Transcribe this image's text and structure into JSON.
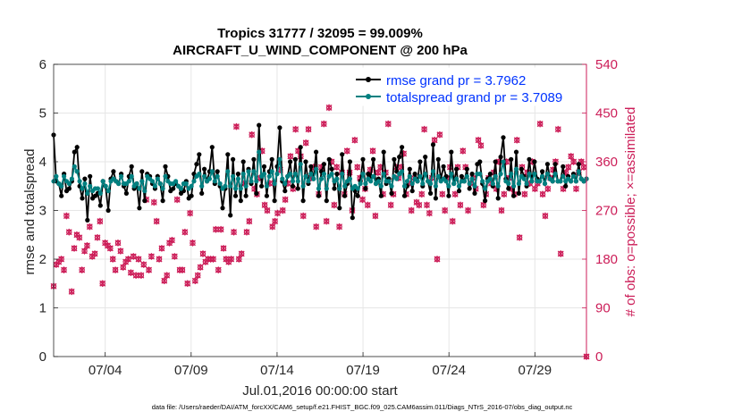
{
  "chart_data": {
    "type": "line",
    "title_line1": "Tropics 31777 / 32095 = 99.009%",
    "title_line2": "AIRCRAFT_U_WIND_COMPONENT @ 200 hPa",
    "xlabel": "Jul.01,2016 00:00:00 start",
    "ylabel_left": "rmse and totalspread",
    "ylabel_right": "# of obs: o=possible; ×=assimilated",
    "x_ticks": [
      "07/04",
      "07/09",
      "07/14",
      "07/19",
      "07/24",
      "07/29"
    ],
    "x_tick_days": [
      4,
      9,
      14,
      19,
      24,
      29
    ],
    "xlim": [
      1,
      32
    ],
    "ylim_left": [
      0,
      6
    ],
    "yticks_left": [
      "0",
      "1",
      "2",
      "3",
      "4",
      "5",
      "6"
    ],
    "ylim_right": [
      0,
      540
    ],
    "yticks_right": [
      "0",
      "90",
      "180",
      "270",
      "360",
      "450",
      "540"
    ],
    "footnote": "data file: /Users/raeder/DAI/ATM_forcXX/CAM6_setup/f.e21.FHIST_BGC.f09_025.CAM6assim.011/Diags_NTrS_2016-07/obs_diag_output.nc",
    "colors": {
      "rmse": "#000000",
      "spread": "#008080",
      "obs": "#cc1d58",
      "right_axis": "#cc1d58",
      "legend_text": "#0033ff"
    },
    "series": [
      {
        "name": "rmse grand pr = 3.7962",
        "values": [
          4.55,
          3.6,
          3.55,
          3.3,
          3.75,
          3.4,
          3.45,
          3.6,
          4.2,
          4.3,
          3.5,
          3.25,
          3.65,
          2.8,
          3.7,
          3.25,
          3.3,
          3.35,
          3.1,
          3.6,
          3.5,
          3.0,
          3.65,
          3.8,
          3.6,
          3.55,
          3.75,
          3.5,
          3.35,
          3.7,
          3.9,
          3.45,
          3.55,
          3.05,
          3.8,
          3.2,
          3.75,
          3.7,
          3.55,
          3.45,
          3.7,
          3.55,
          3.2,
          3.9,
          3.7,
          3.4,
          3.45,
          3.55,
          3.5,
          3.35,
          3.4,
          3.6,
          3.25,
          3.3,
          3.75,
          3.95,
          4.15,
          3.35,
          3.85,
          3.6,
          3.8,
          4.3,
          3.55,
          3.8,
          3.5,
          3.05,
          3.45,
          4.15,
          2.9,
          4.05,
          3.3,
          3.75,
          3.2,
          4.0,
          3.3,
          3.85,
          3.55,
          4.05,
          3.35,
          4.75,
          3.5,
          3.9,
          3.3,
          3.8,
          4.05,
          3.2,
          3.9,
          4.7,
          3.6,
          3.4,
          3.7,
          4.0,
          3.5,
          4.05,
          3.45,
          4.3,
          3.2,
          4.0,
          3.55,
          3.9,
          3.65,
          4.2,
          3.3,
          3.8,
          3.95,
          3.2,
          4.05,
          3.85,
          3.45,
          3.75,
          3.05,
          4.15,
          3.3,
          3.55,
          4.0,
          2.85,
          3.4,
          3.3,
          3.6,
          4.05,
          3.45,
          3.75,
          3.7,
          4.05,
          3.55,
          3.65,
          3.3,
          4.2,
          3.55,
          3.65,
          3.35,
          4.05,
          3.8,
          4.1,
          4.3,
          3.3,
          3.5,
          3.85,
          3.4,
          3.75,
          3.6,
          4.0,
          3.5,
          4.1,
          3.6,
          3.35,
          4.35,
          3.25,
          4.05,
          3.65,
          3.9,
          3.7,
          3.3,
          4.2,
          3.55,
          3.85,
          3.4,
          3.7,
          3.6,
          3.85,
          3.45,
          3.75,
          3.35,
          3.95,
          4.0,
          3.55,
          3.2,
          3.65,
          3.75,
          3.5,
          4.0,
          3.25,
          4.1,
          4.5,
          3.65,
          3.45,
          4.05,
          3.3,
          4.2,
          3.35,
          3.85,
          3.7,
          3.5,
          4.05,
          3.6,
          4.0,
          3.65,
          3.6,
          3.8,
          3.55,
          3.95,
          3.65,
          3.6,
          3.95,
          3.6,
          3.6,
          3.9,
          3.5,
          3.7,
          3.6,
          3.75,
          3.6,
          3.95,
          3.65,
          3.6,
          3.65
        ]
      },
      {
        "name": "totalspread grand pr = 3.7089",
        "values": [
          3.6,
          3.7,
          3.55,
          3.5,
          3.7,
          3.6,
          3.55,
          3.65,
          3.9,
          3.8,
          3.6,
          3.45,
          3.55,
          3.35,
          3.5,
          3.4,
          3.45,
          3.45,
          3.35,
          3.6,
          3.5,
          3.4,
          3.6,
          3.65,
          3.6,
          3.55,
          3.7,
          3.55,
          3.55,
          3.6,
          3.7,
          3.5,
          3.55,
          3.45,
          3.6,
          3.4,
          3.7,
          3.65,
          3.6,
          3.5,
          3.65,
          3.55,
          3.45,
          3.7,
          3.6,
          3.55,
          3.55,
          3.6,
          3.5,
          3.45,
          3.55,
          3.55,
          3.45,
          3.5,
          3.6,
          3.7,
          3.75,
          3.5,
          3.7,
          3.6,
          3.65,
          3.8,
          3.6,
          3.7,
          3.55,
          3.45,
          3.5,
          3.8,
          3.5,
          3.7,
          3.45,
          3.65,
          3.45,
          3.75,
          3.5,
          3.8,
          3.6,
          3.8,
          3.6,
          4.2,
          3.7,
          3.75,
          3.5,
          3.7,
          3.8,
          3.55,
          3.75,
          4.05,
          3.65,
          3.55,
          3.7,
          3.75,
          3.6,
          3.75,
          3.6,
          3.95,
          3.5,
          3.7,
          3.6,
          3.75,
          3.65,
          3.85,
          3.45,
          3.65,
          3.75,
          3.45,
          3.7,
          3.75,
          3.6,
          3.65,
          3.45,
          3.75,
          3.5,
          3.6,
          3.65,
          3.45,
          3.5,
          3.45,
          3.55,
          3.75,
          3.55,
          3.65,
          3.6,
          3.7,
          3.55,
          3.6,
          3.5,
          3.75,
          3.6,
          3.6,
          3.5,
          3.7,
          3.65,
          3.75,
          3.8,
          3.5,
          3.6,
          3.7,
          3.55,
          3.65,
          3.6,
          3.7,
          3.55,
          3.75,
          3.6,
          3.55,
          3.8,
          3.5,
          3.7,
          3.6,
          3.65,
          3.6,
          3.5,
          3.75,
          3.55,
          3.65,
          3.5,
          3.6,
          3.6,
          3.7,
          3.55,
          3.65,
          3.5,
          3.75,
          3.75,
          3.6,
          3.45,
          3.6,
          3.65,
          3.55,
          3.7,
          3.5,
          3.75,
          4.0,
          3.6,
          3.55,
          3.75,
          3.5,
          3.85,
          3.55,
          3.7,
          3.65,
          3.55,
          3.75,
          3.6,
          3.75,
          3.6,
          3.6,
          3.7,
          3.55,
          3.75,
          3.65,
          3.6,
          3.75,
          3.6,
          3.6,
          3.7,
          3.6,
          3.65,
          3.6,
          3.7,
          3.6,
          3.8,
          3.65,
          3.6,
          3.65
        ]
      }
    ],
    "obs_possible": [
      130,
      170,
      175,
      180,
      160,
      260,
      230,
      120,
      200,
      225,
      220,
      160,
      195,
      205,
      240,
      185,
      190,
      220,
      250,
      135,
      210,
      205,
      200,
      180,
      160,
      210,
      195,
      165,
      175,
      180,
      155,
      185,
      150,
      180,
      150,
      170,
      290,
      160,
      185,
      285,
      250,
      180,
      200,
      140,
      150,
      210,
      215,
      185,
      290,
      160,
      160,
      230,
      135,
      265,
      210,
      140,
      150,
      165,
      190,
      175,
      180,
      180,
      180,
      235,
      160,
      235,
      200,
      180,
      175,
      180,
      230,
      425,
      180,
      190,
      320,
      230,
      250,
      410,
      310,
      300,
      330,
      380,
      280,
      270,
      320,
      240,
      250,
      265,
      345,
      270,
      290,
      320,
      370,
      310,
      420,
      380,
      370,
      260,
      395,
      420,
      330,
      350,
      240,
      300,
      350,
      430,
      250,
      460,
      360,
      280,
      350,
      240,
      340,
      300,
      380,
      340,
      270,
      400,
      350,
      330,
      290,
      310,
      280,
      345,
      380,
      260,
      340,
      350,
      300,
      340,
      430,
      280,
      300,
      350,
      330,
      350,
      375,
      300,
      320,
      270,
      330,
      285,
      280,
      300,
      420,
      280,
      265,
      330,
      400,
      180,
      410,
      300,
      270,
      330,
      350,
      250,
      300,
      350,
      280,
      380,
      350,
      270,
      320,
      330,
      310,
      400,
      390,
      280,
      300,
      330,
      320,
      340,
      310,
      360,
      270,
      300,
      360,
      330,
      310,
      300,
      400,
      220,
      350,
      300,
      340,
      320,
      360,
      310,
      320,
      430,
      300,
      260,
      310,
      330,
      345,
      360,
      420,
      190,
      310,
      340,
      350,
      370,
      360,
      310,
      340,
      360,
      350,
      0
    ]
  }
}
